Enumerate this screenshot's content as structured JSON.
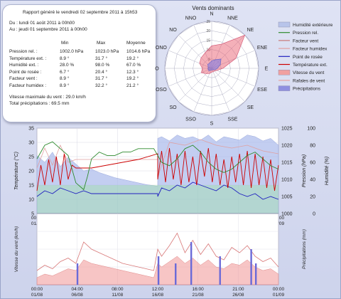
{
  "report": {
    "header": "Rapport généré le vendredi 02 septembre 2011 à 15h53",
    "from": "Du : lundi 01 août 2011 à 00h00",
    "to": "Au : jeudi 01 septembre 2011 à 00h00",
    "col_min": "Min",
    "col_max": "Max",
    "col_avg": "Moyenne",
    "rows": [
      {
        "label": "Pression rel. :",
        "min": "1002.0 hPa",
        "max": "1023.0 hPa",
        "avg": "1014.6 hPa"
      },
      {
        "label": "Température ext. :",
        "min": "8.9 °",
        "max": "31.7 °",
        "avg": "19.2 °"
      },
      {
        "label": "Humidité ext. :",
        "min": "28.0 %",
        "max": "98.0 %",
        "avg": "67.0 %"
      },
      {
        "label": "Point de rosée :",
        "min": "6.7 °",
        "max": "20.4 °",
        "avg": "12.3 °"
      },
      {
        "label": "Facteur vent :",
        "min": "8.9 °",
        "max": "31.7 °",
        "avg": "19.2 °"
      },
      {
        "label": "Facteur humidex :",
        "min": "8.9 °",
        "max": "32.2 °",
        "avg": "21.2 °"
      }
    ],
    "wind_max": "Vitesse maximale du vent : 29.0 km/h",
    "rain_total": "Total précipitations : 69.5 mm"
  },
  "legend": [
    {
      "label": "Humidité extérieure",
      "color": "#b8c4ea",
      "kind": "fill"
    },
    {
      "label": "Pression rel.",
      "color": "#2e8b2e",
      "kind": "line"
    },
    {
      "label": "Facteur vent",
      "color": "#c87878",
      "kind": "line"
    },
    {
      "label": "Facteur humidex",
      "color": "#e0a0a0",
      "kind": "line"
    },
    {
      "label": "Point de rosée",
      "color": "#2020c0",
      "kind": "line"
    },
    {
      "label": "Température ext.",
      "color": "#cc0000",
      "kind": "line"
    },
    {
      "label": "Vitesse du vent",
      "color": "#f0a0a0",
      "kind": "fill"
    },
    {
      "label": "Rafales de vent",
      "color": "#e8a0a0",
      "kind": "line"
    },
    {
      "label": "Précipitations",
      "color": "#9090e0",
      "kind": "fill"
    }
  ],
  "chart_data": [
    {
      "type": "radar",
      "title": "Vents dominants",
      "directions": [
        "N",
        "NNE",
        "NE",
        "ENE",
        "E",
        "ESE",
        "SE",
        "SSE",
        "S",
        "SSO",
        "SO",
        "OSO",
        "O",
        "ONO",
        "NO",
        "NNO"
      ],
      "rings": [
        "0",
        "5",
        "10",
        "15",
        "20",
        "25"
      ],
      "rmax": 25,
      "series": [
        {
          "name": "Vitesse du vent",
          "values": [
            12,
            14,
            25,
            14,
            6,
            3,
            2,
            2,
            2,
            3,
            4,
            6,
            5,
            7,
            8,
            9
          ]
        },
        {
          "name": "Rafales de vent",
          "values": [
            4,
            5,
            7,
            5,
            3,
            2,
            1,
            1,
            1,
            1,
            2,
            2,
            2,
            2,
            3,
            3
          ]
        }
      ]
    },
    {
      "type": "line",
      "xticks": [
        "00:00\n01/08",
        "04:00\n06/08",
        "08:00\n11/08",
        "12:00\n16/08",
        "16:00\n21/08",
        "21:00\n26/08",
        "00:00\n01/09"
      ],
      "xrange": [
        0,
        31
      ],
      "y_left": {
        "label": "Température (°C)",
        "ticks": [
          5,
          10,
          15,
          20,
          25,
          30,
          35
        ],
        "range": [
          5,
          35
        ]
      },
      "y_right_pressure": {
        "label": "Pression (hPa)",
        "ticks": [
          1000,
          1005,
          1010,
          1015,
          1020,
          1025
        ],
        "range": [
          1000,
          1025
        ]
      },
      "y_right_humidity": {
        "label": "Humidité (%)",
        "ticks": [
          0,
          20,
          40,
          60,
          80,
          100
        ],
        "range": [
          0,
          100
        ]
      },
      "series": [
        {
          "name": "Humidité extérieure",
          "x": [
            0,
            1,
            2,
            3,
            4,
            5,
            6,
            7,
            8,
            9,
            10,
            11,
            12,
            13,
            14,
            15.5,
            15.5,
            16,
            17,
            18,
            19,
            20,
            21,
            22,
            23,
            24,
            25,
            26,
            27,
            28,
            29,
            30,
            31
          ],
          "values": [
            68,
            60,
            72,
            55,
            66,
            58,
            50,
            52,
            48,
            45,
            42,
            40,
            38,
            36,
            34,
            32,
            88,
            90,
            85,
            92,
            88,
            90,
            86,
            92,
            84,
            90,
            88,
            86,
            92,
            90,
            85,
            88,
            80
          ]
        },
        {
          "name": "Pression rel.",
          "x": [
            0,
            0.5,
            1,
            2,
            3,
            4,
            4.5,
            5,
            6,
            6.5,
            7,
            8,
            9,
            10,
            11,
            12,
            13,
            14,
            15,
            15.5,
            16,
            17,
            18,
            19,
            20,
            21,
            22,
            23,
            24,
            25,
            26,
            27,
            28,
            29,
            30,
            31
          ],
          "values": [
            1016,
            1018,
            1020,
            1021,
            1019,
            1017,
            1013,
            1009,
            1007,
            1011,
            1016,
            1018,
            1017,
            1017,
            1018,
            1018,
            1019,
            1019,
            1019,
            1017,
            1015,
            1014,
            1016,
            1019,
            1020,
            1018,
            1015,
            1013,
            1012,
            1013,
            1015,
            1017,
            1018,
            1016,
            1014,
            1013
          ]
        },
        {
          "name": "Température ext.",
          "x": [
            0,
            0.5,
            1,
            1.5,
            2,
            2.5,
            3,
            3.5,
            4,
            4.5,
            5,
            7,
            9,
            11,
            13,
            15.5,
            15.5,
            16,
            16.5,
            17,
            17.5,
            18,
            18.5,
            19,
            19.5,
            20,
            20.5,
            21,
            21.5,
            22,
            22.5,
            23,
            23.5,
            24,
            24.5,
            25,
            25.5,
            26,
            26.5,
            27,
            27.5,
            28,
            28.5,
            29,
            29.5,
            30,
            30.5,
            31
          ],
          "values": [
            13,
            22,
            15,
            24,
            16,
            25,
            15,
            26,
            17,
            22,
            21,
            21,
            22,
            23,
            24,
            26,
            17,
            27,
            16,
            28,
            17,
            26,
            15,
            27,
            16,
            25,
            15,
            27,
            18,
            28,
            16,
            26,
            15,
            24,
            14,
            25,
            16,
            26,
            15,
            27,
            14,
            26,
            15,
            25,
            14,
            24,
            13,
            22
          ]
        },
        {
          "name": "Point de rosée",
          "x": [
            0,
            1,
            2,
            3,
            4,
            5,
            6,
            7,
            8,
            9,
            10,
            11,
            12,
            13,
            14,
            15.5,
            15.5,
            16,
            17,
            18,
            19,
            20,
            21,
            22,
            23,
            24,
            25,
            26,
            27,
            28,
            29,
            30,
            31
          ],
          "values": [
            11,
            13,
            12,
            14,
            13,
            12,
            13,
            12,
            12,
            12,
            12,
            12,
            12,
            12,
            12,
            12,
            11,
            14,
            13,
            15,
            14,
            16,
            15,
            14,
            13,
            15,
            14,
            12,
            11,
            12,
            10,
            11,
            10
          ]
        },
        {
          "name": "Facteur humidex",
          "x": [
            0,
            1,
            2,
            3,
            4,
            5,
            7,
            9,
            11,
            13,
            15.5,
            15.5,
            17,
            19,
            21,
            23,
            25,
            27,
            29,
            31
          ],
          "values": [
            21,
            28,
            22,
            29,
            23,
            24,
            24,
            24,
            24,
            24,
            24,
            18,
            30,
            29,
            31,
            29,
            28,
            29,
            27,
            26
          ]
        }
      ]
    },
    {
      "type": "area",
      "xticks": [
        "00:00\n01/08",
        "04:00\n06/08",
        "08:00\n11/08",
        "12:00\n16/08",
        "16:00\n21/08",
        "21:00\n26/08",
        "00:00\n01/09"
      ],
      "xrange": [
        0,
        31
      ],
      "y_left": {
        "label": "Vitesse du vent (km/h)"
      },
      "y_right": {
        "label": "Précipitations (mm)"
      },
      "series": [
        {
          "name": "Vitesse du vent",
          "x": [
            0,
            1,
            2,
            3,
            4,
            5,
            6,
            7,
            8,
            9,
            10,
            11,
            12,
            13,
            14,
            15,
            15.5,
            16,
            17,
            18,
            19,
            20,
            21,
            22,
            23,
            24,
            25,
            26,
            27,
            28,
            29,
            30,
            31
          ],
          "values": [
            4,
            6,
            5,
            7,
            9,
            8,
            14,
            12,
            11,
            10,
            9,
            8,
            7,
            6,
            5,
            4,
            12,
            10,
            13,
            16,
            12,
            15,
            11,
            14,
            10,
            9,
            12,
            11,
            14,
            10,
            8,
            9,
            6
          ]
        },
        {
          "name": "Rafales de vent",
          "x": [
            0,
            1,
            2,
            3,
            4,
            5,
            6,
            7,
            8,
            9,
            10,
            11,
            12,
            13,
            14,
            15,
            15.5,
            16,
            17,
            18,
            19,
            20,
            21,
            22,
            23,
            24,
            25,
            26,
            27,
            28,
            29,
            30,
            31
          ],
          "values": [
            8,
            11,
            9,
            13,
            15,
            12,
            24,
            20,
            18,
            16,
            14,
            12,
            11,
            10,
            9,
            8,
            20,
            16,
            22,
            29,
            18,
            25,
            17,
            23,
            16,
            14,
            21,
            18,
            22,
            16,
            13,
            15,
            10
          ]
        },
        {
          "name": "Précipitations",
          "x": [
            5.2,
            15.6,
            17.8,
            19.8,
            23.5,
            27.5,
            28.1
          ],
          "values": [
            3,
            4,
            3,
            6,
            4,
            5,
            3
          ]
        }
      ]
    }
  ]
}
